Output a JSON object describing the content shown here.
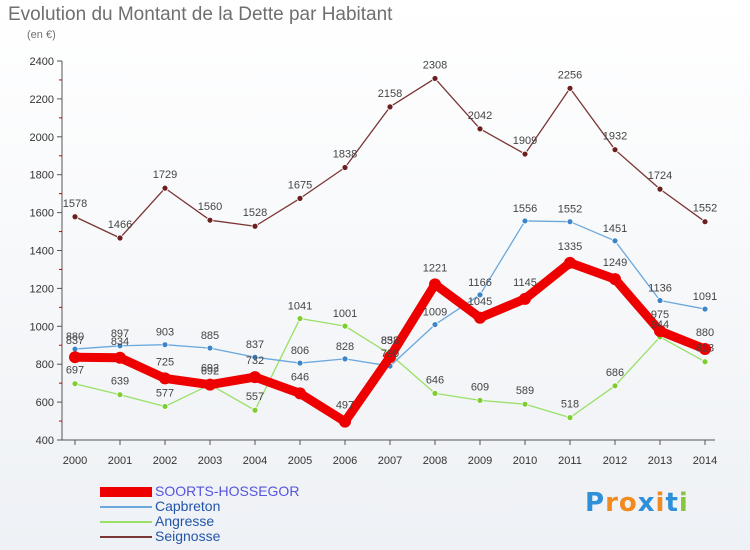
{
  "chart_data": {
    "type": "line",
    "title": "Evolution du Montant de la Dette par Habitant",
    "unit_label": "(en €)",
    "x": [
      "2000",
      "2001",
      "2002",
      "2003",
      "2004",
      "2005",
      "2006",
      "2007",
      "2008",
      "2009",
      "2010",
      "2011",
      "2012",
      "2013",
      "2014"
    ],
    "ylim": [
      400,
      2400
    ],
    "yticks": [
      400,
      600,
      800,
      1000,
      1200,
      1400,
      1600,
      1800,
      2000,
      2200,
      2400
    ],
    "grid": false,
    "legend_position": "bottom-left",
    "series": [
      {
        "name": "SOORTS-HOSSEGOR",
        "color": "#ee0000",
        "point_color": "#ee0000",
        "emphasis": true,
        "values": [
          837,
          834,
          725,
          692,
          732,
          646,
          497,
          838,
          1221,
          1045,
          1145,
          1335,
          1249,
          975,
          880
        ]
      },
      {
        "name": "Capbreton",
        "color": "#6aa8dd",
        "point_color": "#3d85c6",
        "values": [
          880,
          897,
          903,
          885,
          837,
          806,
          828,
          790,
          1009,
          1166,
          1556,
          1552,
          1451,
          1136,
          1091
        ]
      },
      {
        "name": "Angresse",
        "color": "#99e066",
        "point_color": "#7fcc33",
        "values": [
          697,
          639,
          577,
          692,
          557,
          1041,
          1001,
          853,
          646,
          609,
          589,
          518,
          686,
          944,
          813
        ]
      },
      {
        "name": "Seignosse",
        "color": "#7a3535",
        "point_color": "#6b1f1f",
        "values": [
          1578,
          1466,
          1729,
          1560,
          1528,
          1675,
          1838,
          2158,
          2308,
          2042,
          1909,
          2256,
          1932,
          1724,
          1552
        ]
      }
    ]
  },
  "logo": {
    "letters": [
      "P",
      "r",
      "o",
      "x",
      "i",
      "t",
      "i"
    ],
    "colors": [
      "#2f8fd8",
      "#f18a1f",
      "#f18a1f",
      "#2f8fd8",
      "#f18a1f",
      "#2f8fd8",
      "#8bc53f"
    ]
  }
}
